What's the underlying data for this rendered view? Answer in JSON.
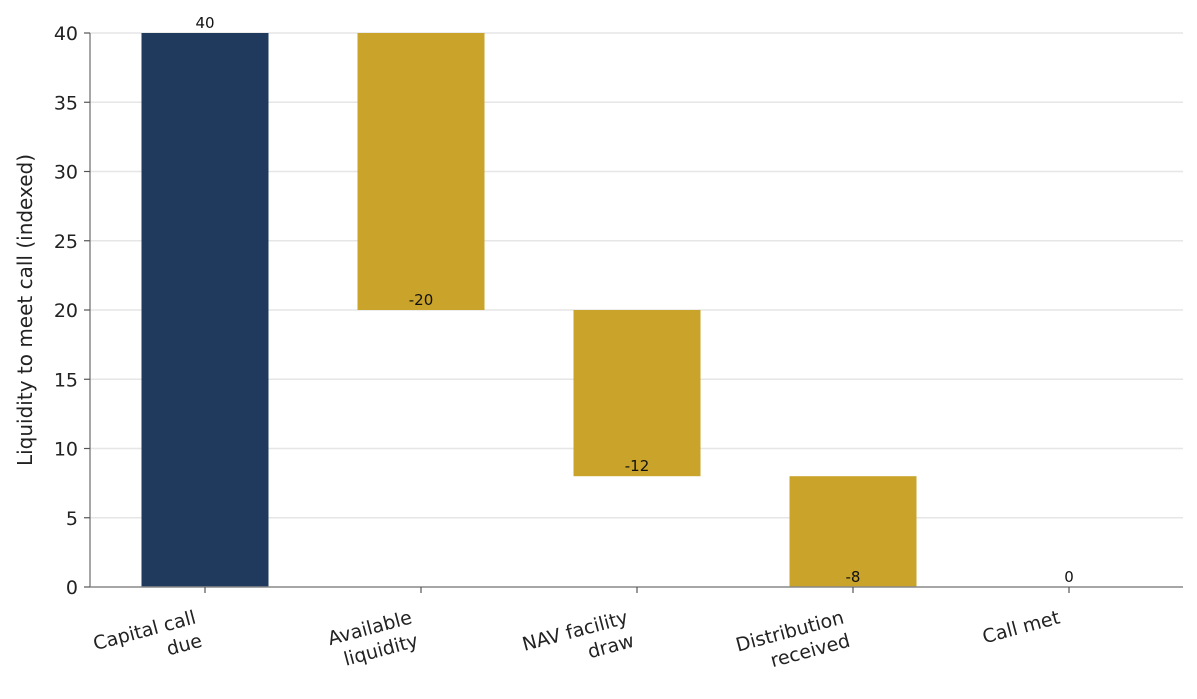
{
  "chart_data": {
    "type": "bar",
    "subtype": "waterfall",
    "title": "",
    "xlabel": "",
    "ylabel": "Liquidity to meet call (indexed)",
    "ylim": [
      0,
      40
    ],
    "yticks": [
      0,
      5,
      10,
      15,
      20,
      25,
      30,
      35,
      40
    ],
    "grid": "horizontal",
    "categories": [
      [
        "Capital call",
        "due"
      ],
      [
        "Available",
        "liquidity"
      ],
      [
        "NAV facility",
        "draw"
      ],
      [
        "Distribution",
        "received"
      ],
      [
        "Call met"
      ]
    ],
    "bars": [
      {
        "category": "Capital call due",
        "start": 0,
        "end": 40,
        "label": "40",
        "color": "#1f3a5c"
      },
      {
        "category": "Available liquidity",
        "start": 40,
        "end": 20,
        "label": "-20",
        "color": "#c9a32a"
      },
      {
        "category": "NAV facility draw",
        "start": 20,
        "end": 8,
        "label": "-12",
        "color": "#c9a32a"
      },
      {
        "category": "Distribution received",
        "start": 8,
        "end": 0,
        "label": "-8",
        "color": "#c9a32a"
      },
      {
        "category": "Call met",
        "start": 0,
        "end": 0,
        "label": "0",
        "color": "#1f3a5c"
      }
    ],
    "colors": {
      "total": "#1f3a5c",
      "step": "#c9a32a",
      "grid": "#e6e6e6",
      "axis": "#888888"
    }
  }
}
